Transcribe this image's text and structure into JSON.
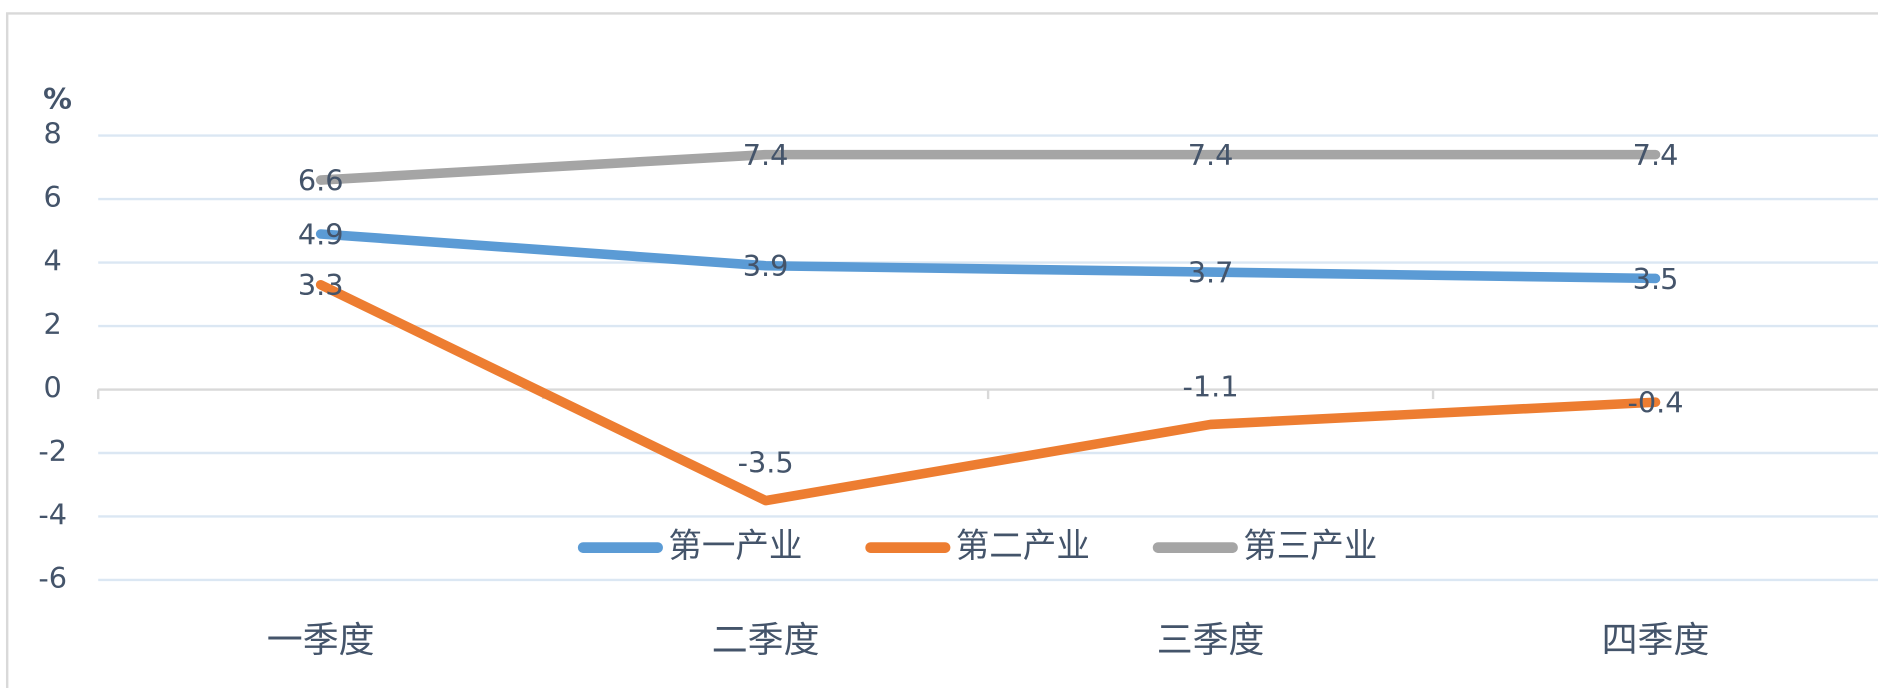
{
  "chart_data": {
    "type": "line",
    "y_unit": "%",
    "categories": [
      "一季度",
      "二季度",
      "三季度",
      "四季度"
    ],
    "series": [
      {
        "name": "第一产业",
        "color": "#5b9bd5",
        "values": [
          4.9,
          3.9,
          3.7,
          3.5
        ]
      },
      {
        "name": "第二产业",
        "color": "#ed7d31",
        "values": [
          3.3,
          -3.5,
          -1.1,
          -0.4
        ]
      },
      {
        "name": "第三产业",
        "color": "#a5a5a5",
        "values": [
          6.6,
          7.4,
          7.4,
          7.4
        ]
      }
    ],
    "ylim": [
      -6,
      8
    ],
    "yticks": [
      -6,
      -4,
      -2,
      0,
      2,
      4,
      6,
      8
    ],
    "grid": true,
    "legend": "bottom"
  }
}
